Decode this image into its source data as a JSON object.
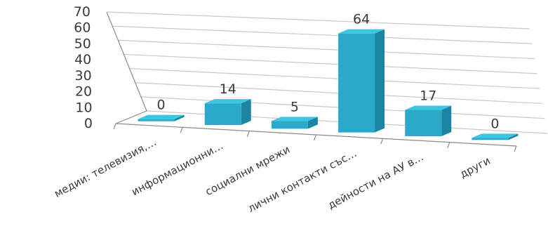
{
  "chart_data": {
    "type": "bar",
    "categories": [
      "медии: телевизия,…",
      "информационни…",
      "социални мрежи",
      "лични контакти със…",
      "дейности на АУ  в…",
      "други"
    ],
    "values": [
      0,
      14,
      5,
      64,
      17,
      0
    ],
    "y_ticks": [
      "0",
      "10",
      "20",
      "30",
      "40",
      "50",
      "60",
      "70"
    ],
    "ylim": [
      0,
      70
    ],
    "title": "",
    "xlabel": "",
    "ylabel": "",
    "grid": true,
    "three_d": true,
    "colors": {
      "front": "#2aaac8",
      "top": "#3dc6e2",
      "side": "#1b86a3",
      "grid": "#c8c8c8"
    }
  }
}
